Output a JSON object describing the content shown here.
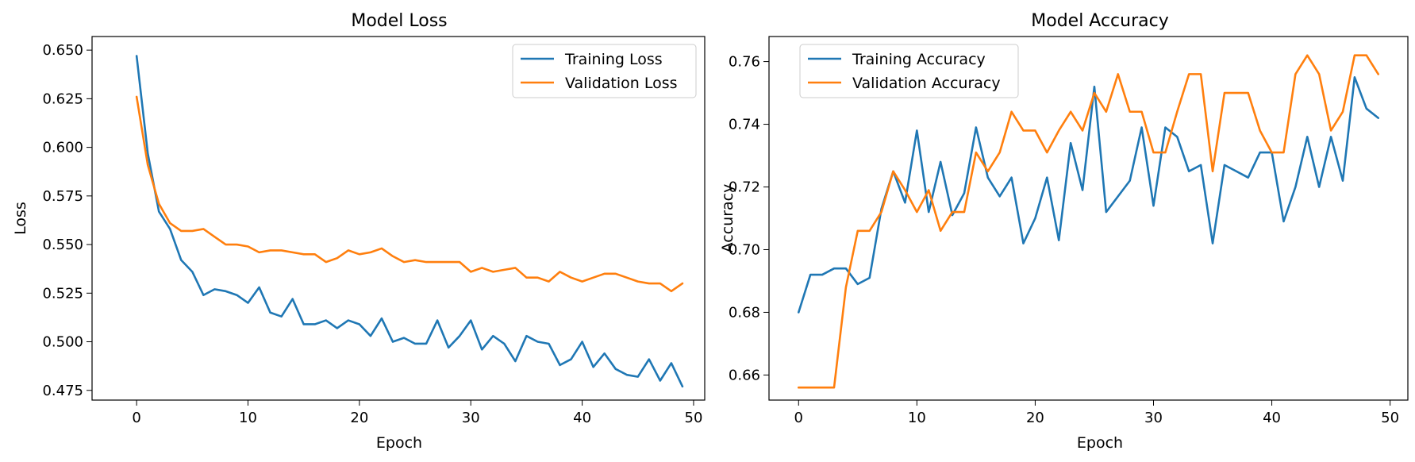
{
  "colors": {
    "training": "#1f77b4",
    "validation": "#ff7f0e"
  },
  "chart_data": [
    {
      "type": "line",
      "title": "Model Loss",
      "xlabel": "Epoch",
      "ylabel": "Loss",
      "xlim": [
        -4,
        51
      ],
      "ylim": [
        0.47,
        0.657
      ],
      "xticks": [
        0,
        10,
        20,
        30,
        40,
        50
      ],
      "yticks": [
        0.475,
        0.5,
        0.525,
        0.55,
        0.575,
        0.6,
        0.625,
        0.65
      ],
      "ytick_labels": [
        "0.475",
        "0.500",
        "0.525",
        "0.550",
        "0.575",
        "0.600",
        "0.625",
        "0.650"
      ],
      "legend_position": "top-right",
      "grid": false,
      "x": [
        0,
        1,
        2,
        3,
        4,
        5,
        6,
        7,
        8,
        9,
        10,
        11,
        12,
        13,
        14,
        15,
        16,
        17,
        18,
        19,
        20,
        21,
        22,
        23,
        24,
        25,
        26,
        27,
        28,
        29,
        30,
        31,
        32,
        33,
        34,
        35,
        36,
        37,
        38,
        39,
        40,
        41,
        42,
        43,
        44,
        45,
        46,
        47,
        48,
        49
      ],
      "series": [
        {
          "name": "Training Loss",
          "color": "#1f77b4",
          "values": [
            0.647,
            0.597,
            0.567,
            0.558,
            0.542,
            0.536,
            0.524,
            0.527,
            0.526,
            0.524,
            0.52,
            0.528,
            0.515,
            0.513,
            0.522,
            0.509,
            0.509,
            0.511,
            0.507,
            0.511,
            0.509,
            0.503,
            0.512,
            0.5,
            0.502,
            0.499,
            0.499,
            0.511,
            0.497,
            0.503,
            0.511,
            0.496,
            0.503,
            0.499,
            0.49,
            0.503,
            0.5,
            0.499,
            0.488,
            0.491,
            0.5,
            0.487,
            0.494,
            0.486,
            0.483,
            0.482,
            0.491,
            0.48,
            0.489,
            0.477
          ]
        },
        {
          "name": "Validation Loss",
          "color": "#ff7f0e",
          "values": [
            0.626,
            0.591,
            0.571,
            0.561,
            0.557,
            0.557,
            0.558,
            0.554,
            0.55,
            0.55,
            0.549,
            0.546,
            0.547,
            0.547,
            0.546,
            0.545,
            0.545,
            0.541,
            0.543,
            0.547,
            0.545,
            0.546,
            0.548,
            0.544,
            0.541,
            0.542,
            0.541,
            0.541,
            0.541,
            0.541,
            0.536,
            0.538,
            0.536,
            0.537,
            0.538,
            0.533,
            0.533,
            0.531,
            0.536,
            0.533,
            0.531,
            0.533,
            0.535,
            0.535,
            0.533,
            0.531,
            0.53,
            0.53,
            0.526,
            0.53
          ]
        }
      ]
    },
    {
      "type": "line",
      "title": "Model Accuracy",
      "xlabel": "Epoch",
      "ylabel": "Accuracy",
      "xlim": [
        -2.5,
        51.5
      ],
      "ylim": [
        0.652,
        0.768
      ],
      "xticks": [
        0,
        10,
        20,
        30,
        40,
        50
      ],
      "yticks": [
        0.66,
        0.68,
        0.7,
        0.72,
        0.74,
        0.76
      ],
      "ytick_labels": [
        "0.66",
        "0.68",
        "0.70",
        "0.72",
        "0.74",
        "0.76"
      ],
      "legend_position": "top-left",
      "grid": false,
      "x": [
        0,
        1,
        2,
        3,
        4,
        5,
        6,
        7,
        8,
        9,
        10,
        11,
        12,
        13,
        14,
        15,
        16,
        17,
        18,
        19,
        20,
        21,
        22,
        23,
        24,
        25,
        26,
        27,
        28,
        29,
        30,
        31,
        32,
        33,
        34,
        35,
        36,
        37,
        38,
        39,
        40,
        41,
        42,
        43,
        44,
        45,
        46,
        47,
        48,
        49
      ],
      "series": [
        {
          "name": "Training Accuracy",
          "color": "#1f77b4",
          "values": [
            0.68,
            0.692,
            0.692,
            0.694,
            0.694,
            0.689,
            0.691,
            0.713,
            0.725,
            0.715,
            0.738,
            0.712,
            0.728,
            0.711,
            0.718,
            0.739,
            0.723,
            0.717,
            0.723,
            0.702,
            0.71,
            0.723,
            0.703,
            0.734,
            0.719,
            0.752,
            0.712,
            0.717,
            0.722,
            0.739,
            0.714,
            0.739,
            0.736,
            0.725,
            0.727,
            0.702,
            0.727,
            0.725,
            0.723,
            0.731,
            0.731,
            0.709,
            0.72,
            0.736,
            0.72,
            0.736,
            0.722,
            0.755,
            0.745,
            0.742
          ]
        },
        {
          "name": "Validation Accuracy",
          "color": "#ff7f0e",
          "values": [
            0.656,
            0.656,
            0.656,
            0.656,
            0.688,
            0.706,
            0.706,
            0.712,
            0.725,
            0.719,
            0.712,
            0.719,
            0.706,
            0.712,
            0.712,
            0.731,
            0.725,
            0.731,
            0.744,
            0.738,
            0.738,
            0.731,
            0.738,
            0.744,
            0.738,
            0.75,
            0.744,
            0.756,
            0.744,
            0.744,
            0.731,
            0.731,
            0.744,
            0.756,
            0.756,
            0.725,
            0.75,
            0.75,
            0.75,
            0.738,
            0.731,
            0.731,
            0.756,
            0.762,
            0.756,
            0.738,
            0.744,
            0.762,
            0.762,
            0.756
          ]
        }
      ]
    }
  ]
}
